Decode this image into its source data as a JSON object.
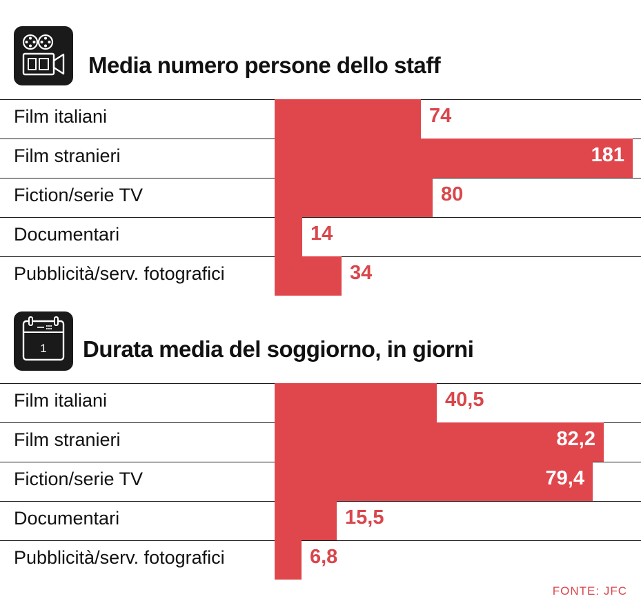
{
  "icons": {
    "section1": "film-camera-icon",
    "section2": "calendar-icon",
    "calendar_day": "1"
  },
  "colors": {
    "bar": "#e0474c",
    "value_outside": "#d9464b",
    "value_inside": "#ffffff",
    "source": "#d9464b",
    "icon_bg": "#1a1a1a"
  },
  "source": "FONTE: JFC",
  "chart_data": [
    {
      "type": "bar",
      "orientation": "horizontal",
      "title": "Media numero persone dello staff",
      "categories": [
        "Film italiani",
        "Film stranieri",
        "Fiction/serie TV",
        "Documentari",
        "Pubblicità/serv. fotografici"
      ],
      "values": [
        74,
        181,
        80,
        14,
        34
      ],
      "value_labels": [
        "74",
        "181",
        "80",
        "14",
        "34"
      ],
      "xlim": [
        0,
        181
      ]
    },
    {
      "type": "bar",
      "orientation": "horizontal",
      "title": "Durata media del soggiorno, in giorni",
      "categories": [
        "Film italiani",
        "Film stranieri",
        "Fiction/serie TV",
        "Documentari",
        "Pubblicità/serv. fotografici"
      ],
      "values": [
        40.5,
        82.2,
        79.4,
        15.5,
        6.8
      ],
      "value_labels": [
        "40,5",
        "82,2",
        "79,4",
        "15,5",
        "6,8"
      ],
      "xlim": [
        0,
        89.4
      ]
    }
  ]
}
